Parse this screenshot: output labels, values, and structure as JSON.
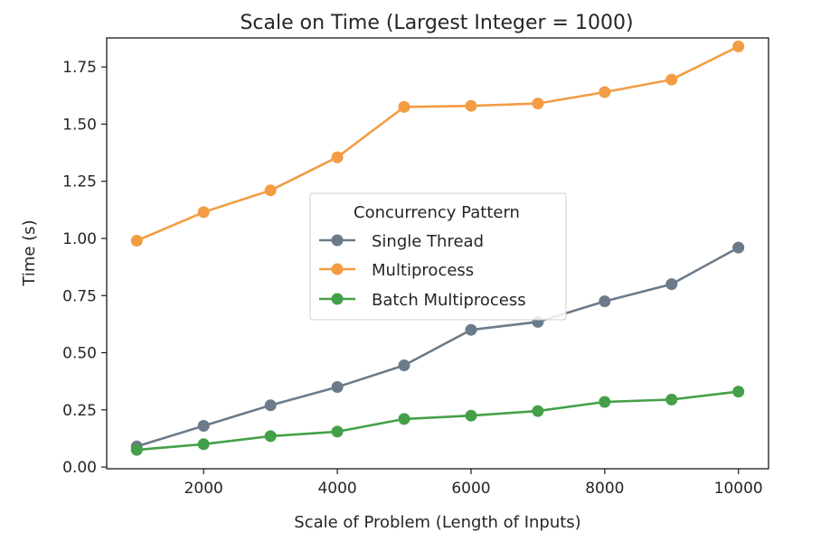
{
  "chart_data": {
    "type": "line",
    "title": "Scale on Time (Largest Integer = 1000)",
    "xlabel": "Scale of Problem (Length of Inputs)",
    "ylabel": "Time (s)",
    "x": [
      1000,
      2000,
      3000,
      4000,
      5000,
      6000,
      7000,
      8000,
      9000,
      10000
    ],
    "xlim": [
      550,
      10450
    ],
    "ylim": [
      -0.0075,
      1.877
    ],
    "xticks": [
      2000,
      4000,
      6000,
      8000,
      10000
    ],
    "xtick_labels": [
      "2000",
      "4000",
      "6000",
      "8000",
      "10000"
    ],
    "yticks": [
      0.0,
      0.25,
      0.5,
      0.75,
      1.0,
      1.25,
      1.5,
      1.75
    ],
    "ytick_labels": [
      "0.00",
      "0.25",
      "0.50",
      "0.75",
      "1.00",
      "1.25",
      "1.50",
      "1.75"
    ],
    "grid": false,
    "legend": {
      "title": "Concurrency Pattern",
      "placement": "center"
    },
    "series": [
      {
        "name": "Single Thread",
        "color": "#6b7b8a",
        "values": [
          0.09,
          0.18,
          0.27,
          0.35,
          0.445,
          0.6,
          0.635,
          0.725,
          0.8,
          0.96
        ]
      },
      {
        "name": "Multiprocess",
        "color": "#f39c43",
        "values": [
          0.99,
          1.115,
          1.21,
          1.355,
          1.575,
          1.58,
          1.59,
          1.64,
          1.695,
          1.84
        ]
      },
      {
        "name": "Batch Multiprocess",
        "color": "#44a048",
        "values": [
          0.075,
          0.1,
          0.135,
          0.155,
          0.21,
          0.225,
          0.245,
          0.285,
          0.295,
          0.33
        ]
      }
    ]
  }
}
